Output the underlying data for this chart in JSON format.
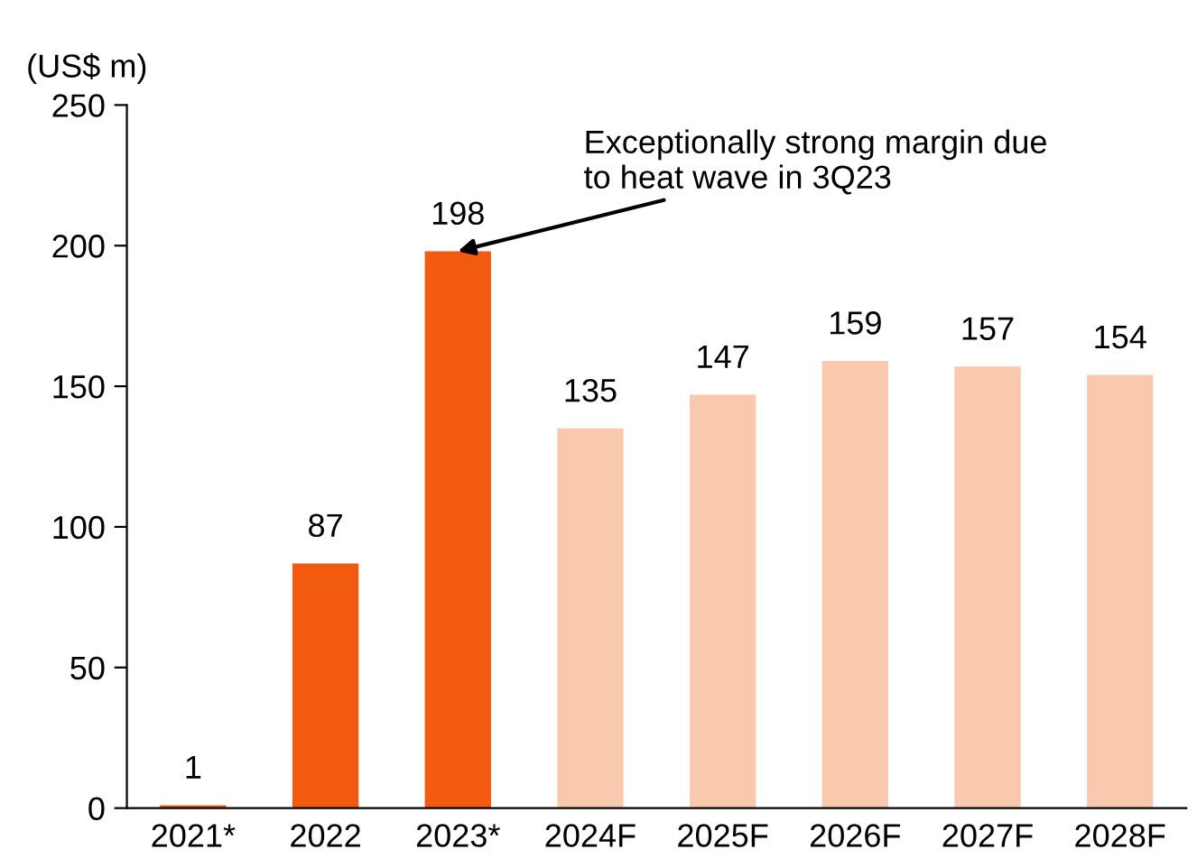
{
  "chart_data": {
    "type": "bar",
    "ylabel": "(US$ m)",
    "categories": [
      "2021*",
      "2022",
      "2023*",
      "2024F",
      "2025F",
      "2026F",
      "2027F",
      "2028F"
    ],
    "values": [
      1,
      87,
      198,
      135,
      147,
      159,
      157,
      154
    ],
    "colors": [
      "#f25b0f",
      "#f25b0f",
      "#f25b0f",
      "#f9c9ae",
      "#f9c9ae",
      "#f9c9ae",
      "#f9c9ae",
      "#f9c9ae"
    ],
    "ylim": [
      0,
      250
    ],
    "yticks": [
      0,
      50,
      100,
      150,
      200,
      250
    ],
    "grid": false,
    "legend": false,
    "data_labels": true,
    "annotations": [
      {
        "text": "Exceptionally strong margin due\nto heat wave in 3Q23",
        "x": "2023*",
        "y": 198
      }
    ]
  }
}
